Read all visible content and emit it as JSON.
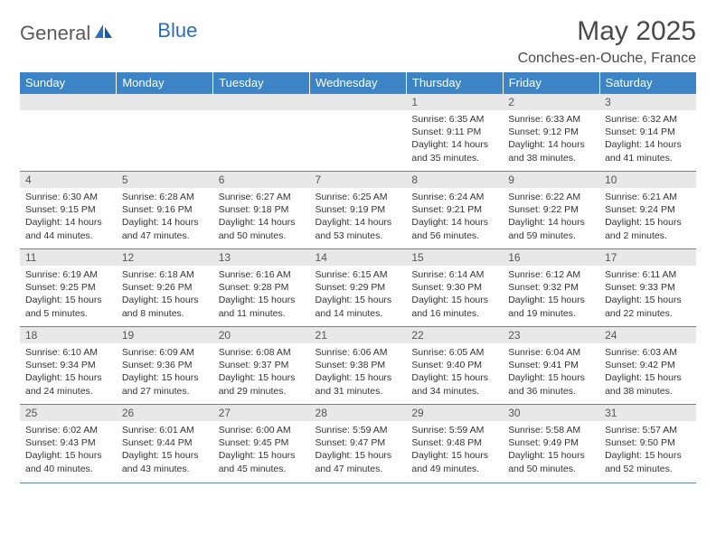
{
  "brand": {
    "part1": "General",
    "part2": "Blue"
  },
  "title": "May 2025",
  "location": "Conches-en-Ouche, France",
  "colors": {
    "header_bg": "#3d84c6",
    "header_fg": "#ffffff",
    "rule": "#5b84b0",
    "daynum_bg": "#e8e8e8",
    "text": "#333333",
    "logo_gray": "#5a5a5a",
    "logo_blue": "#2d6fb5"
  },
  "dow": [
    "Sunday",
    "Monday",
    "Tuesday",
    "Wednesday",
    "Thursday",
    "Friday",
    "Saturday"
  ],
  "weeks": [
    [
      null,
      null,
      null,
      null,
      {
        "n": "1",
        "sr": "6:35 AM",
        "ss": "9:11 PM",
        "dl": "14 hours and 35 minutes."
      },
      {
        "n": "2",
        "sr": "6:33 AM",
        "ss": "9:12 PM",
        "dl": "14 hours and 38 minutes."
      },
      {
        "n": "3",
        "sr": "6:32 AM",
        "ss": "9:14 PM",
        "dl": "14 hours and 41 minutes."
      }
    ],
    [
      {
        "n": "4",
        "sr": "6:30 AM",
        "ss": "9:15 PM",
        "dl": "14 hours and 44 minutes."
      },
      {
        "n": "5",
        "sr": "6:28 AM",
        "ss": "9:16 PM",
        "dl": "14 hours and 47 minutes."
      },
      {
        "n": "6",
        "sr": "6:27 AM",
        "ss": "9:18 PM",
        "dl": "14 hours and 50 minutes."
      },
      {
        "n": "7",
        "sr": "6:25 AM",
        "ss": "9:19 PM",
        "dl": "14 hours and 53 minutes."
      },
      {
        "n": "8",
        "sr": "6:24 AM",
        "ss": "9:21 PM",
        "dl": "14 hours and 56 minutes."
      },
      {
        "n": "9",
        "sr": "6:22 AM",
        "ss": "9:22 PM",
        "dl": "14 hours and 59 minutes."
      },
      {
        "n": "10",
        "sr": "6:21 AM",
        "ss": "9:24 PM",
        "dl": "15 hours and 2 minutes."
      }
    ],
    [
      {
        "n": "11",
        "sr": "6:19 AM",
        "ss": "9:25 PM",
        "dl": "15 hours and 5 minutes."
      },
      {
        "n": "12",
        "sr": "6:18 AM",
        "ss": "9:26 PM",
        "dl": "15 hours and 8 minutes."
      },
      {
        "n": "13",
        "sr": "6:16 AM",
        "ss": "9:28 PM",
        "dl": "15 hours and 11 minutes."
      },
      {
        "n": "14",
        "sr": "6:15 AM",
        "ss": "9:29 PM",
        "dl": "15 hours and 14 minutes."
      },
      {
        "n": "15",
        "sr": "6:14 AM",
        "ss": "9:30 PM",
        "dl": "15 hours and 16 minutes."
      },
      {
        "n": "16",
        "sr": "6:12 AM",
        "ss": "9:32 PM",
        "dl": "15 hours and 19 minutes."
      },
      {
        "n": "17",
        "sr": "6:11 AM",
        "ss": "9:33 PM",
        "dl": "15 hours and 22 minutes."
      }
    ],
    [
      {
        "n": "18",
        "sr": "6:10 AM",
        "ss": "9:34 PM",
        "dl": "15 hours and 24 minutes."
      },
      {
        "n": "19",
        "sr": "6:09 AM",
        "ss": "9:36 PM",
        "dl": "15 hours and 27 minutes."
      },
      {
        "n": "20",
        "sr": "6:08 AM",
        "ss": "9:37 PM",
        "dl": "15 hours and 29 minutes."
      },
      {
        "n": "21",
        "sr": "6:06 AM",
        "ss": "9:38 PM",
        "dl": "15 hours and 31 minutes."
      },
      {
        "n": "22",
        "sr": "6:05 AM",
        "ss": "9:40 PM",
        "dl": "15 hours and 34 minutes."
      },
      {
        "n": "23",
        "sr": "6:04 AM",
        "ss": "9:41 PM",
        "dl": "15 hours and 36 minutes."
      },
      {
        "n": "24",
        "sr": "6:03 AM",
        "ss": "9:42 PM",
        "dl": "15 hours and 38 minutes."
      }
    ],
    [
      {
        "n": "25",
        "sr": "6:02 AM",
        "ss": "9:43 PM",
        "dl": "15 hours and 40 minutes."
      },
      {
        "n": "26",
        "sr": "6:01 AM",
        "ss": "9:44 PM",
        "dl": "15 hours and 43 minutes."
      },
      {
        "n": "27",
        "sr": "6:00 AM",
        "ss": "9:45 PM",
        "dl": "15 hours and 45 minutes."
      },
      {
        "n": "28",
        "sr": "5:59 AM",
        "ss": "9:47 PM",
        "dl": "15 hours and 47 minutes."
      },
      {
        "n": "29",
        "sr": "5:59 AM",
        "ss": "9:48 PM",
        "dl": "15 hours and 49 minutes."
      },
      {
        "n": "30",
        "sr": "5:58 AM",
        "ss": "9:49 PM",
        "dl": "15 hours and 50 minutes."
      },
      {
        "n": "31",
        "sr": "5:57 AM",
        "ss": "9:50 PM",
        "dl": "15 hours and 52 minutes."
      }
    ]
  ],
  "labels": {
    "sunrise": "Sunrise: ",
    "sunset": "Sunset: ",
    "daylight": "Daylight: "
  }
}
